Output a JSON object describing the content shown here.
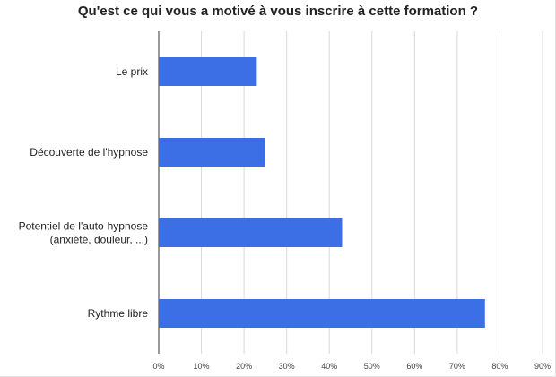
{
  "chart_data": {
    "type": "bar",
    "orientation": "horizontal",
    "title": "Qu'est ce qui vous a motivé à vous inscrire à cette formation ?",
    "categories": [
      [
        "Le prix"
      ],
      [
        "Découverte de l'hypnose"
      ],
      [
        "Potentiel de l'auto-hypnose",
        "(anxiété, douleur, ...)"
      ],
      [
        "Rythme libre"
      ]
    ],
    "values": [
      0.23,
      0.25,
      0.43,
      0.765
    ],
    "xlim": [
      0,
      0.9
    ],
    "xticks": [
      "0%",
      "10%",
      "20%",
      "30%",
      "40%",
      "50%",
      "60%",
      "70%",
      "80%",
      "90%"
    ],
    "bar_color": "#3c6fe6",
    "grid": true
  }
}
